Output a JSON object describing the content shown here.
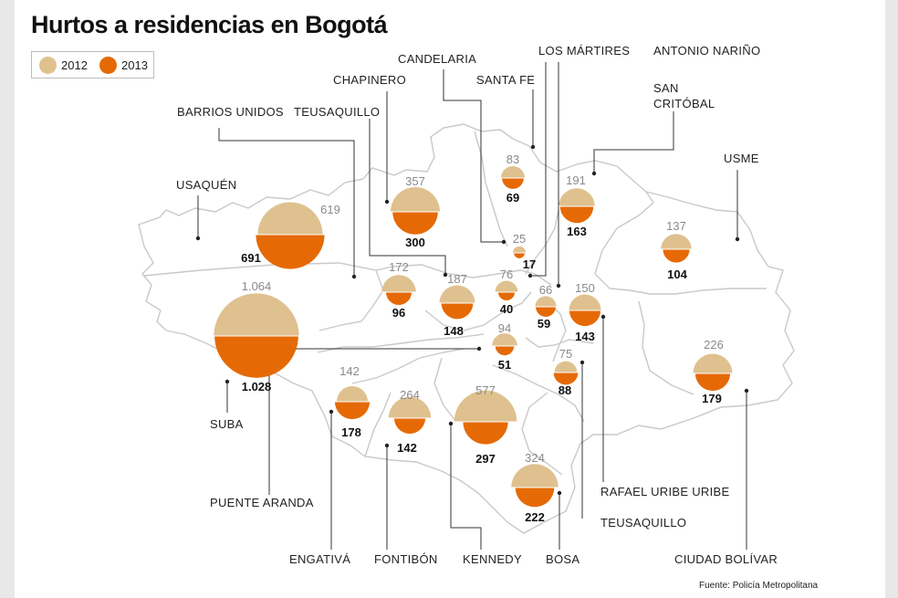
{
  "title": "Hurtos a residencias en Bogotá",
  "legend": [
    {
      "label": "2012",
      "color": "#dfc18f"
    },
    {
      "label": "2013",
      "color": "#e56a05"
    }
  ],
  "colors": {
    "y2012": "#dfc18f",
    "y2013": "#e56a05",
    "map_line": "#c9c9c9"
  },
  "source": "Fuente: Policía Metropolitana",
  "localities": [
    {
      "name": "USAQUÉN",
      "v2012": "619",
      "v2013": "691",
      "val2012": 619,
      "val2013": 691
    },
    {
      "name": "SUBA",
      "v2012": "1.064",
      "v2013": "1.028",
      "val2012": 1064,
      "val2013": 1028
    },
    {
      "name": "CHAPINERO",
      "v2012": "357",
      "v2013": "300",
      "val2012": 357,
      "val2013": 300
    },
    {
      "name": "BARRIOS UNIDOS",
      "v2012": "172",
      "v2013": "96",
      "val2012": 172,
      "val2013": 96
    },
    {
      "name": "TEUSAQUILLO",
      "v2012": "187",
      "v2013": "148",
      "val2012": 187,
      "val2013": 148
    },
    {
      "name": "SANTA FE",
      "v2012": "83",
      "v2013": "69",
      "val2012": 83,
      "val2013": 69
    },
    {
      "name": "CANDELARIA",
      "v2012": "25",
      "v2013": "17",
      "val2012": 25,
      "val2013": 17
    },
    {
      "name": "LOS MÁRTIRES",
      "v2012": "76",
      "v2013": "40",
      "val2012": 76,
      "val2013": 40
    },
    {
      "name": "ANTONIO NARIÑO",
      "v2012": "66",
      "v2013": "59",
      "val2012": 66,
      "val2013": 59
    },
    {
      "name": "SAN CRITÓBAL",
      "v2012": "191",
      "v2013": "163",
      "val2012": 191,
      "val2013": 163
    },
    {
      "name": "USME",
      "v2012": "137",
      "v2013": "104",
      "val2012": 137,
      "val2013": 104
    },
    {
      "name": "RAFAEL URIBE URIBE",
      "v2012": "150",
      "v2013": "143",
      "val2012": 150,
      "val2013": 143
    },
    {
      "name": "PUENTE ARANDA",
      "v2012": "94",
      "v2013": "51",
      "val2012": 94,
      "val2013": 51
    },
    {
      "name": "TEUSAQUILLO",
      "v2012": "75",
      "v2013": "88",
      "val2012": 75,
      "val2013": 88
    },
    {
      "name": "ENGATIVÁ",
      "v2012": "142",
      "v2013": "178",
      "val2012": 142,
      "val2013": 178
    },
    {
      "name": "FONTIBÓN",
      "v2012": "264",
      "v2013": "142",
      "val2012": 264,
      "val2013": 142
    },
    {
      "name": "KENNEDY",
      "v2012": "577",
      "v2013": "297",
      "val2012": 577,
      "val2013": 297
    },
    {
      "name": "BOSA",
      "v2012": "324",
      "v2013": "222",
      "val2012": 324,
      "val2013": 222
    },
    {
      "name": "CIUDAD BOLÍVAR",
      "v2012": "226",
      "v2013": "179",
      "val2012": 226,
      "val2013": 179
    }
  ]
}
